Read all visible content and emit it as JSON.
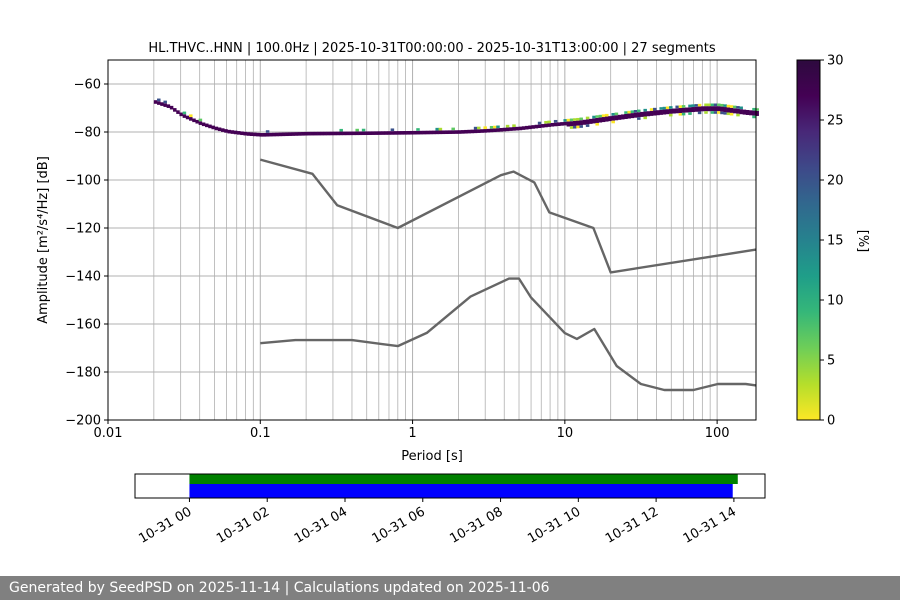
{
  "chart_data": {
    "type": "heatmap",
    "title": "HL.THVC..HNN | 100.0Hz | 2025-10-31T00:00:00 - 2025-10-31T13:00:00 | 27 segments",
    "xlabel": "Period [s]",
    "ylabel": "Amplitude [m²/s⁴/Hz] [dB]",
    "xscale": "log",
    "xlim": [
      0.01,
      180
    ],
    "ylim": [
      -200,
      -50
    ],
    "xticks": [
      {
        "value": 0.01,
        "label": "0.01"
      },
      {
        "value": 0.1,
        "label": "0.1"
      },
      {
        "value": 1,
        "label": "1"
      },
      {
        "value": 10,
        "label": "10"
      },
      {
        "value": 100,
        "label": "100"
      }
    ],
    "yticks": [
      {
        "value": -60,
        "label": "−60"
      },
      {
        "value": -80,
        "label": "−80"
      },
      {
        "value": -100,
        "label": "−100"
      },
      {
        "value": -120,
        "label": "−120"
      },
      {
        "value": -140,
        "label": "−140"
      },
      {
        "value": -160,
        "label": "−160"
      },
      {
        "value": -180,
        "label": "−180"
      },
      {
        "value": -200,
        "label": "−200"
      }
    ],
    "grid": true,
    "colorbar": {
      "label": "[%]",
      "range": [
        0,
        30
      ],
      "ticks": [
        {
          "value": 0,
          "label": "0"
        },
        {
          "value": 5,
          "label": "5"
        },
        {
          "value": 10,
          "label": "10"
        },
        {
          "value": 15,
          "label": "15"
        },
        {
          "value": 20,
          "label": "20"
        },
        {
          "value": 25,
          "label": "25"
        },
        {
          "value": 30,
          "label": "30"
        }
      ]
    },
    "psd_band": [
      [
        0.02,
        -67.5
      ],
      [
        0.025,
        -69.5
      ],
      [
        0.03,
        -73
      ],
      [
        0.04,
        -76.5
      ],
      [
        0.05,
        -78.5
      ],
      [
        0.06,
        -79.8
      ],
      [
        0.08,
        -80.8
      ],
      [
        0.1,
        -81.2
      ],
      [
        0.2,
        -80.7
      ],
      [
        0.5,
        -80.5
      ],
      [
        1,
        -80.3
      ],
      [
        2,
        -80
      ],
      [
        3,
        -79.5
      ],
      [
        5,
        -78.5
      ],
      [
        8,
        -77
      ],
      [
        12,
        -76
      ],
      [
        20,
        -74
      ],
      [
        30,
        -72.5
      ],
      [
        50,
        -71
      ],
      [
        80,
        -70
      ],
      [
        100,
        -70
      ],
      [
        150,
        -71.5
      ],
      [
        180,
        -72
      ]
    ],
    "noise_models": [
      {
        "name": "high",
        "points": [
          [
            0.1,
            -91.5
          ],
          [
            0.22,
            -97.4
          ],
          [
            0.32,
            -110.5
          ],
          [
            0.8,
            -120
          ],
          [
            3.8,
            -98
          ],
          [
            4.6,
            -96.5
          ],
          [
            6.3,
            -101
          ],
          [
            7.9,
            -113.5
          ],
          [
            15.4,
            -120
          ],
          [
            20,
            -138.5
          ],
          [
            180,
            -129
          ]
        ]
      },
      {
        "name": "low",
        "points": [
          [
            0.1,
            -168
          ],
          [
            0.17,
            -166.7
          ],
          [
            0.4,
            -166.7
          ],
          [
            0.8,
            -169.2
          ],
          [
            1.24,
            -163.7
          ],
          [
            2.4,
            -148.6
          ],
          [
            4.3,
            -141.1
          ],
          [
            5.0,
            -141.1
          ],
          [
            6.0,
            -149
          ],
          [
            10,
            -163.8
          ],
          [
            12,
            -166.2
          ],
          [
            15.6,
            -162.1
          ],
          [
            21.9,
            -177.5
          ],
          [
            31.6,
            -185
          ],
          [
            45,
            -187.5
          ],
          [
            70,
            -187.5
          ],
          [
            101,
            -185
          ],
          [
            154,
            -185
          ],
          [
            180,
            -185.6
          ]
        ]
      }
    ],
    "timeline": {
      "xlim_hours": [
        -1.4,
        14.8
      ],
      "ticks": [
        {
          "value": 0,
          "label": "10-31 00"
        },
        {
          "value": 2,
          "label": "10-31 02"
        },
        {
          "value": 4,
          "label": "10-31 04"
        },
        {
          "value": 6,
          "label": "10-31 06"
        },
        {
          "value": 8,
          "label": "10-31 08"
        },
        {
          "value": 10,
          "label": "10-31 10"
        },
        {
          "value": 12,
          "label": "10-31 12"
        },
        {
          "value": 14,
          "label": "10-31 14"
        }
      ],
      "bars": [
        {
          "name": "green",
          "color": "#008000",
          "start": 0,
          "end": 14.1
        },
        {
          "name": "blue",
          "color": "#0000ff",
          "start": 0,
          "end": 13.97
        }
      ]
    }
  },
  "footer": {
    "text": "Generated by SeedPSD on 2025-11-14 | Calculations updated on 2025-11-06"
  }
}
